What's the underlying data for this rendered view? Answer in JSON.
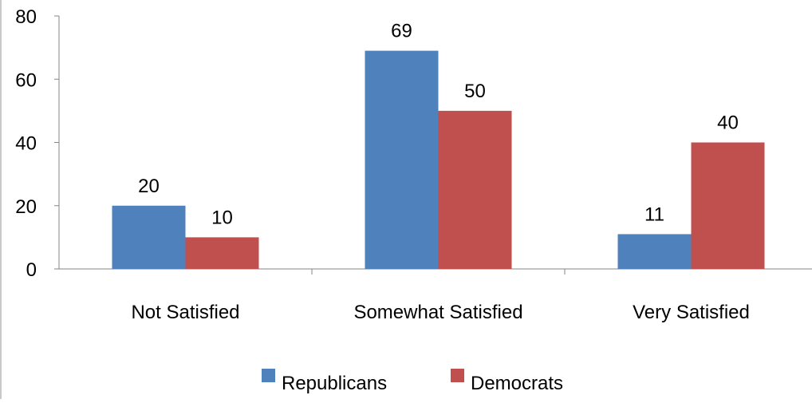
{
  "chart_data": {
    "type": "bar",
    "categories": [
      "Not Satisfied",
      "Somewhat Satisfied",
      "Very Satisfied"
    ],
    "series": [
      {
        "name": "Republicans",
        "values": [
          20,
          69,
          11
        ],
        "color": "#4f81bd"
      },
      {
        "name": "Democrats",
        "values": [
          10,
          50,
          40
        ],
        "color": "#c0504d"
      }
    ],
    "value_labels": [
      [
        "20",
        "69",
        "11"
      ],
      [
        "10",
        "50",
        "40"
      ]
    ],
    "ylim": [
      0,
      80
    ],
    "yticks": [
      0,
      20,
      40,
      60,
      80
    ],
    "ytick_labels": [
      "0",
      "20",
      "40",
      "60",
      "80"
    ],
    "title": "",
    "xlabel": "",
    "ylabel": "",
    "grid": false,
    "legend_position": "bottom"
  }
}
